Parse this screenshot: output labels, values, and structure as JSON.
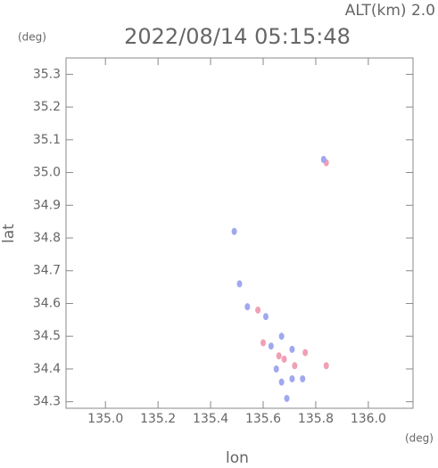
{
  "chart_data": {
    "type": "scatter",
    "title": "2022/08/14 05:15:48",
    "subtitle": "ALT(km) 2.0",
    "y_unit": "(deg)",
    "x_unit": "(deg)",
    "x_label": "lon",
    "y_label": "lat",
    "xlim": [
      134.85,
      136.17
    ],
    "ylim": [
      34.28,
      35.35
    ],
    "xticks": [
      {
        "value": 135.0,
        "label": "135.0"
      },
      135.2,
      135.4,
      135.6,
      135.8,
      {
        "value": 136.0,
        "label": "136.0"
      }
    ],
    "yticks": [
      35.3,
      35.2,
      35.1,
      {
        "value": 35.0,
        "label": "35.0"
      },
      34.9,
      34.8,
      34.7,
      34.6,
      34.5,
      34.4,
      34.3
    ],
    "series": [
      {
        "color": "#f0a0b4",
        "x": [
          135.84,
          135.58,
          135.6,
          135.66,
          135.68,
          135.72,
          135.76,
          135.84
        ],
        "values": [
          35.03,
          34.58,
          34.48,
          34.44,
          34.43,
          34.41,
          34.45,
          34.41
        ]
      },
      {
        "color": "#a0a8f0",
        "x": [
          135.83,
          135.49,
          135.51,
          135.54,
          135.61,
          135.63,
          135.67,
          135.65,
          135.71,
          135.67,
          135.71,
          135.75,
          135.69
        ],
        "values": [
          35.04,
          34.82,
          34.66,
          34.59,
          34.56,
          34.47,
          34.5,
          34.4,
          34.46,
          34.36,
          34.37,
          34.37,
          34.31
        ]
      }
    ]
  }
}
